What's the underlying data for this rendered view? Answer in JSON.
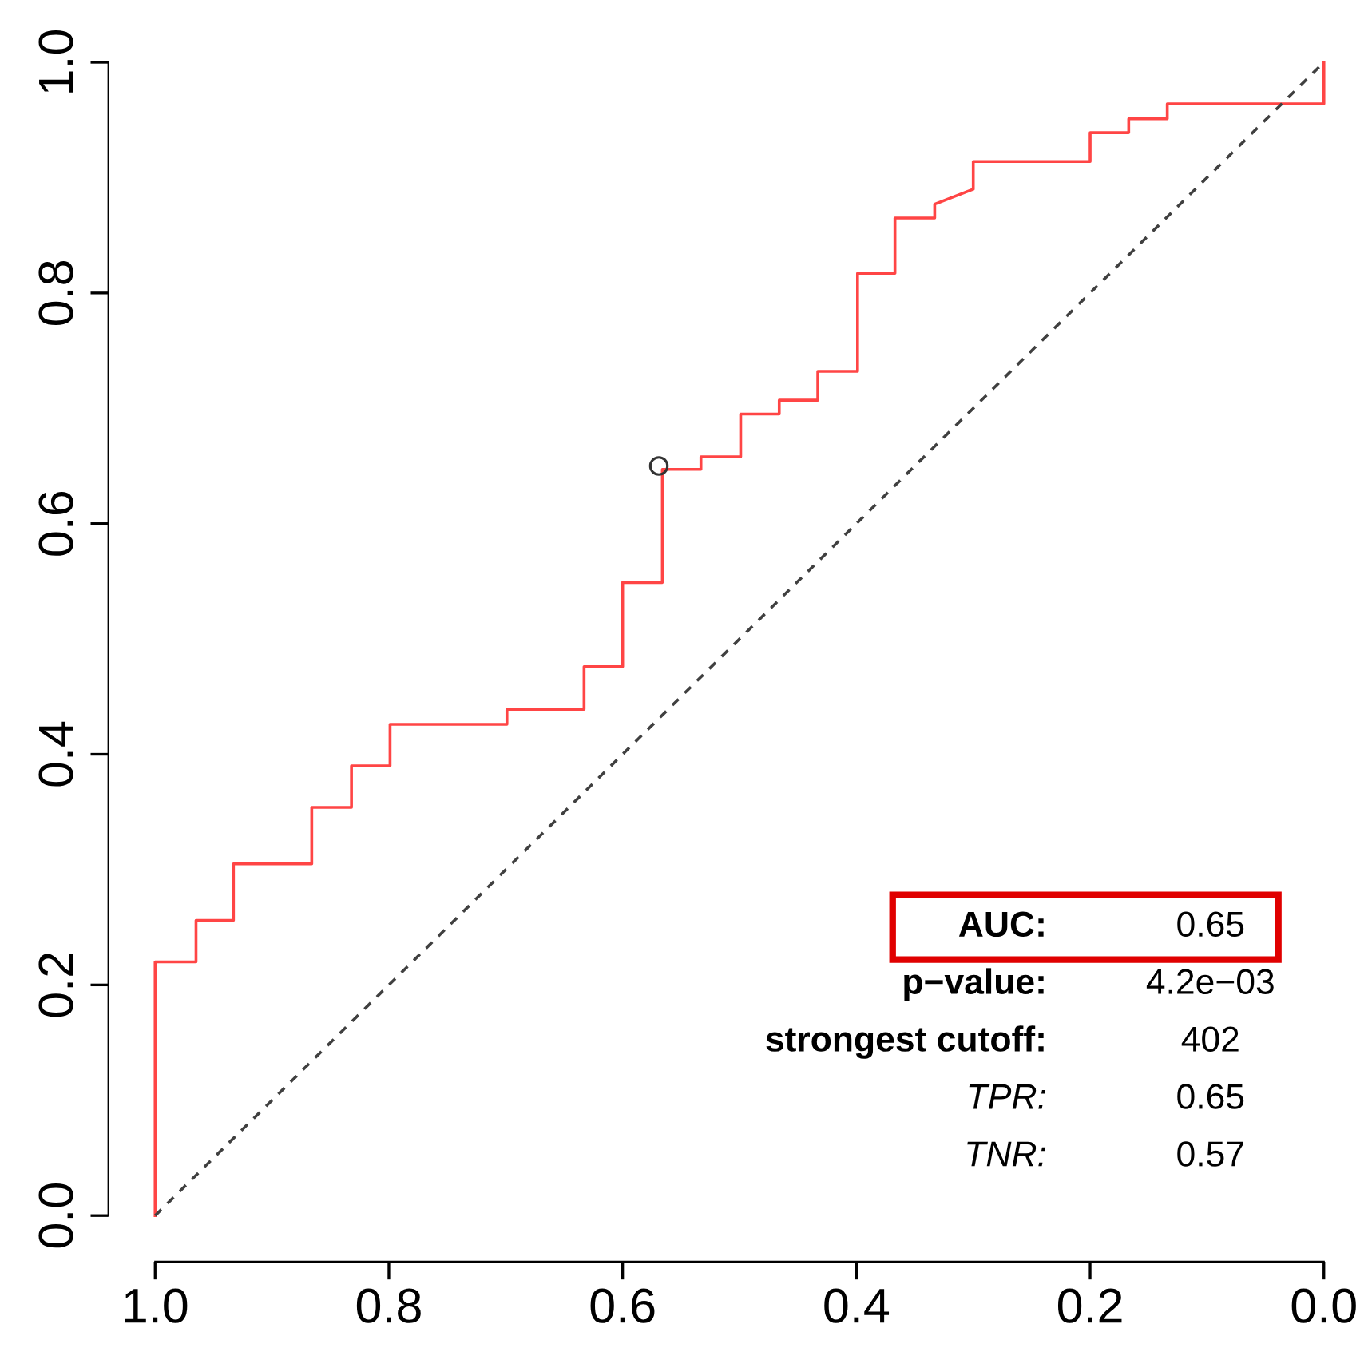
{
  "chart_data": {
    "type": "line",
    "xlim": [
      1.0,
      0.0
    ],
    "ylim": [
      0.0,
      1.0
    ],
    "xticks": [
      {
        "value": 1,
        "label": "1.0"
      },
      {
        "value": 0.8,
        "label": "0.8"
      },
      {
        "value": 0.6,
        "label": "0.6"
      },
      {
        "value": 0.4,
        "label": "0.4"
      },
      {
        "value": 0.2,
        "label": "0.2"
      },
      {
        "value": 0,
        "label": "0.0"
      }
    ],
    "yticks": [
      {
        "value": 0,
        "label": "0.0"
      },
      {
        "value": 0.2,
        "label": "0.2"
      },
      {
        "value": 0.4,
        "label": "0.4"
      },
      {
        "value": 0.6,
        "label": "0.6"
      },
      {
        "value": 0.8,
        "label": "0.8"
      },
      {
        "value": 1,
        "label": "1.0"
      }
    ],
    "grid": false,
    "legend": false,
    "series": [
      {
        "color": "#ff4545",
        "line_style": "solid",
        "marker": "none",
        "x": [
          1.0,
          1.0,
          0.965,
          0.965,
          0.933,
          0.933,
          0.866,
          0.866,
          0.832,
          0.832,
          0.799,
          0.799,
          0.699,
          0.699,
          0.633,
          0.633,
          0.6,
          0.6,
          0.566,
          0.566,
          0.533,
          0.533,
          0.499,
          0.499,
          0.466,
          0.466,
          0.433,
          0.433,
          0.399,
          0.399,
          0.367,
          0.367,
          0.333,
          0.333,
          0.3,
          0.3,
          0.2,
          0.2,
          0.167,
          0.167,
          0.134,
          0.134,
          0.0,
          0.0
        ],
        "values": [
          0.0,
          0.22,
          0.22,
          0.256,
          0.256,
          0.305,
          0.305,
          0.354,
          0.354,
          0.39,
          0.39,
          0.426,
          0.426,
          0.439,
          0.439,
          0.476,
          0.476,
          0.549,
          0.549,
          0.647,
          0.647,
          0.658,
          0.658,
          0.695,
          0.695,
          0.707,
          0.707,
          0.732,
          0.732,
          0.817,
          0.817,
          0.865,
          0.865,
          0.877,
          0.89,
          0.914,
          0.914,
          0.939,
          0.939,
          0.951,
          0.951,
          0.964,
          0.964,
          1.0
        ]
      },
      {
        "color": "#404040",
        "line_style": "dashed",
        "marker": "none",
        "x": [
          1.0,
          0.0
        ],
        "values": [
          0.0,
          1.0
        ]
      },
      {
        "type": "scatter",
        "color": "#333333",
        "marker": "circle",
        "x": [
          0.569
        ],
        "values": [
          0.65
        ]
      }
    ],
    "annotations": [
      "AUC:",
      "0.65",
      "p−value:",
      "4.2e−03",
      "strongest cutoff:",
      "402",
      "TPR:",
      "0.65",
      "TNR:",
      "0.57"
    ]
  }
}
